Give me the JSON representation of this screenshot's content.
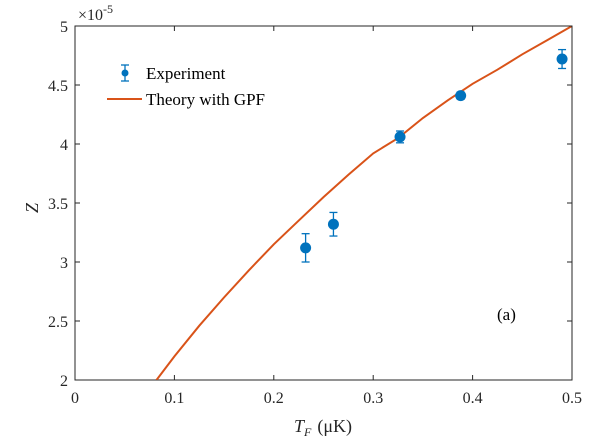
{
  "chart_data": {
    "type": "scatter",
    "xlim": [
      0,
      0.5
    ],
    "ylim": [
      2,
      5
    ],
    "x_ticks": [
      "0",
      "0.1",
      "0.2",
      "0.3",
      "0.4",
      "0.5"
    ],
    "y_ticks": [
      "2",
      "2.5",
      "3",
      "3.5",
      "4",
      "4.5",
      "5"
    ],
    "y_multiplier": "×10",
    "y_multiplier_exponent": "-5",
    "xlabel_symbol": "T",
    "xlabel_subscript": "F",
    "xlabel_unit": "(μK)",
    "ylabel": "Z",
    "annotation": "(a)",
    "grid": false,
    "legend_position": "top-left",
    "series": [
      {
        "name": "Experiment",
        "kind": "errorbar",
        "color": "#0072BD",
        "points": [
          {
            "x": 0.232,
            "y": 3.12,
            "err": 0.12
          },
          {
            "x": 0.26,
            "y": 3.32,
            "err": 0.1
          },
          {
            "x": 0.327,
            "y": 4.06,
            "err": 0.05
          },
          {
            "x": 0.388,
            "y": 4.41,
            "err": 0.03
          },
          {
            "x": 0.49,
            "y": 4.72,
            "err": 0.08
          }
        ]
      },
      {
        "name": "Theory with GPF",
        "kind": "line",
        "color": "#D95319",
        "points": [
          {
            "x": 0.082,
            "y": 2.0
          },
          {
            "x": 0.1,
            "y": 2.2
          },
          {
            "x": 0.125,
            "y": 2.46
          },
          {
            "x": 0.15,
            "y": 2.7
          },
          {
            "x": 0.175,
            "y": 2.93
          },
          {
            "x": 0.2,
            "y": 3.15
          },
          {
            "x": 0.225,
            "y": 3.35
          },
          {
            "x": 0.25,
            "y": 3.55
          },
          {
            "x": 0.275,
            "y": 3.74
          },
          {
            "x": 0.3,
            "y": 3.92
          },
          {
            "x": 0.325,
            "y": 4.05
          },
          {
            "x": 0.35,
            "y": 4.22
          },
          {
            "x": 0.375,
            "y": 4.37
          },
          {
            "x": 0.4,
            "y": 4.51
          },
          {
            "x": 0.425,
            "y": 4.63
          },
          {
            "x": 0.45,
            "y": 4.76
          },
          {
            "x": 0.475,
            "y": 4.88
          },
          {
            "x": 0.5,
            "y": 5.0
          }
        ]
      }
    ]
  }
}
